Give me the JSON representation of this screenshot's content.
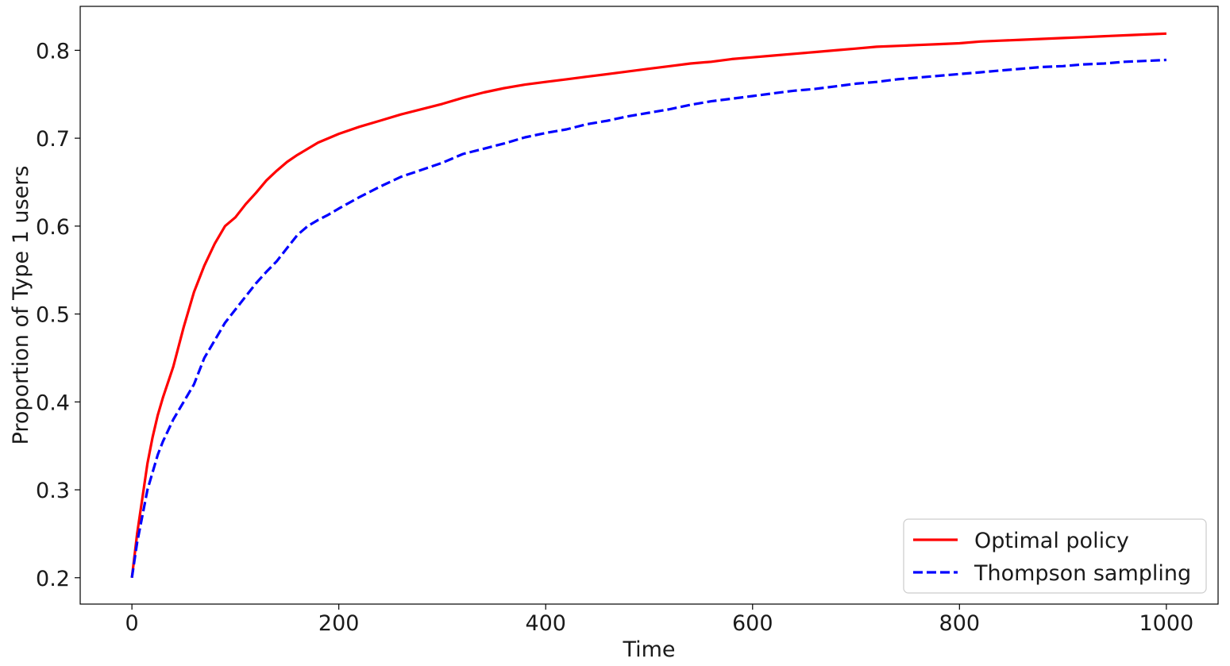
{
  "chart_data": {
    "type": "line",
    "title": "",
    "xlabel": "Time",
    "ylabel": "Proportion of Type 1 users",
    "xlim": [
      -50,
      1050
    ],
    "ylim": [
      0.17,
      0.85
    ],
    "xticks": [
      0,
      200,
      400,
      600,
      800,
      1000
    ],
    "yticks": [
      0.2,
      0.3,
      0.4,
      0.5,
      0.6,
      0.7,
      0.8
    ],
    "xtick_labels": [
      "0",
      "200",
      "400",
      "600",
      "800",
      "1000"
    ],
    "ytick_labels": [
      "0.2",
      "0.3",
      "0.4",
      "0.5",
      "0.6",
      "0.7",
      "0.8"
    ],
    "grid": false,
    "legend_position": "bottom-right",
    "series": [
      {
        "name": "Optimal policy",
        "color": "#ff0000",
        "line_style": "solid",
        "x": [
          0,
          5,
          10,
          15,
          20,
          25,
          30,
          40,
          50,
          60,
          70,
          80,
          90,
          100,
          110,
          120,
          130,
          140,
          150,
          160,
          170,
          180,
          190,
          200,
          220,
          240,
          260,
          280,
          300,
          320,
          340,
          360,
          380,
          400,
          420,
          440,
          460,
          480,
          500,
          520,
          540,
          560,
          580,
          600,
          620,
          640,
          660,
          680,
          700,
          720,
          740,
          760,
          780,
          800,
          820,
          840,
          860,
          880,
          900,
          920,
          940,
          960,
          980,
          1000
        ],
        "y": [
          0.2,
          0.25,
          0.29,
          0.33,
          0.36,
          0.385,
          0.405,
          0.44,
          0.485,
          0.525,
          0.555,
          0.58,
          0.6,
          0.61,
          0.625,
          0.638,
          0.652,
          0.663,
          0.673,
          0.681,
          0.688,
          0.695,
          0.7,
          0.705,
          0.713,
          0.72,
          0.727,
          0.733,
          0.739,
          0.746,
          0.752,
          0.757,
          0.761,
          0.764,
          0.767,
          0.77,
          0.773,
          0.776,
          0.779,
          0.782,
          0.785,
          0.787,
          0.79,
          0.792,
          0.794,
          0.796,
          0.798,
          0.8,
          0.802,
          0.804,
          0.805,
          0.806,
          0.807,
          0.808,
          0.81,
          0.811,
          0.812,
          0.813,
          0.814,
          0.815,
          0.816,
          0.817,
          0.818,
          0.819
        ]
      },
      {
        "name": "Thompson sampling",
        "color": "#0000ff",
        "line_style": "dashed",
        "x": [
          0,
          5,
          10,
          15,
          20,
          25,
          30,
          40,
          50,
          60,
          70,
          80,
          90,
          100,
          110,
          120,
          130,
          140,
          150,
          160,
          170,
          180,
          190,
          200,
          220,
          240,
          260,
          280,
          300,
          320,
          340,
          360,
          380,
          400,
          420,
          440,
          460,
          480,
          500,
          520,
          540,
          560,
          580,
          600,
          620,
          640,
          660,
          680,
          700,
          720,
          740,
          760,
          780,
          800,
          820,
          840,
          860,
          880,
          900,
          920,
          940,
          960,
          980,
          1000
        ],
        "y": [
          0.2,
          0.24,
          0.27,
          0.3,
          0.32,
          0.34,
          0.355,
          0.38,
          0.4,
          0.42,
          0.45,
          0.47,
          0.49,
          0.505,
          0.52,
          0.535,
          0.548,
          0.56,
          0.575,
          0.59,
          0.6,
          0.607,
          0.613,
          0.62,
          0.633,
          0.645,
          0.656,
          0.664,
          0.672,
          0.682,
          0.688,
          0.694,
          0.701,
          0.706,
          0.71,
          0.716,
          0.72,
          0.725,
          0.729,
          0.733,
          0.738,
          0.742,
          0.745,
          0.748,
          0.751,
          0.754,
          0.756,
          0.759,
          0.762,
          0.764,
          0.767,
          0.769,
          0.771,
          0.773,
          0.775,
          0.777,
          0.779,
          0.781,
          0.782,
          0.784,
          0.785,
          0.787,
          0.788,
          0.789
        ]
      }
    ]
  }
}
